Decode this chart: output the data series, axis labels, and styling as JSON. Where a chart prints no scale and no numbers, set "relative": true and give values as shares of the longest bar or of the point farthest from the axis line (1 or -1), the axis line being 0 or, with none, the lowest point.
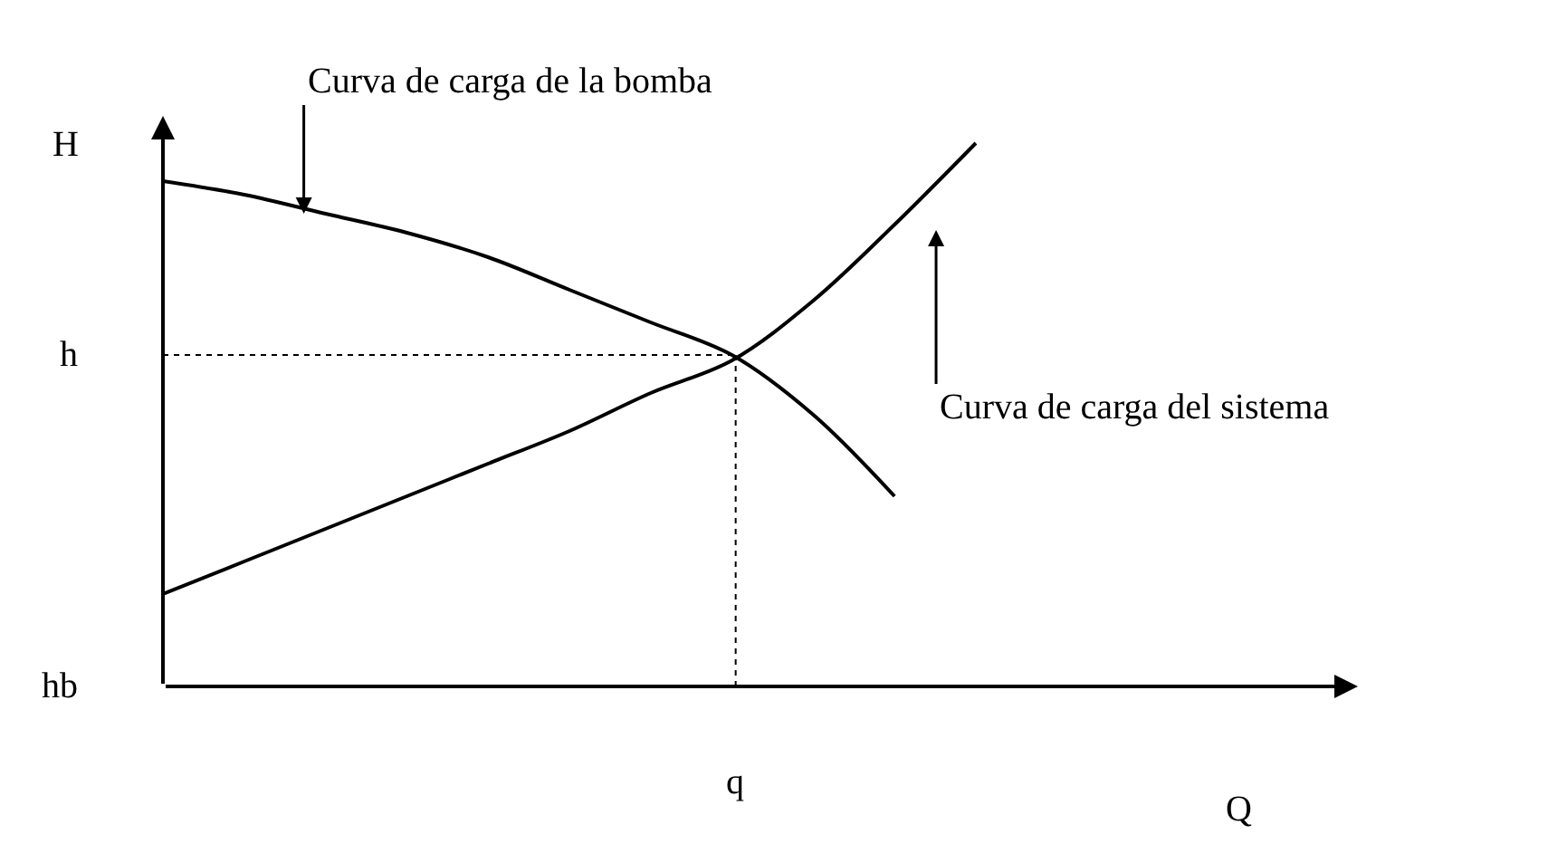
{
  "chart_data": {
    "type": "line",
    "relative": true,
    "ylabel": "H",
    "categories": [
      null,
      null,
      null,
      null,
      null,
      null,
      null,
      null,
      null,
      null,
      null
    ],
    "series": [
      {
        "values": [
          0.93,
          0.905,
          0.87,
          0.835,
          0.79,
          0.73,
          0.67,
          0.61,
          0.5,
          0.35,
          null
        ],
        "color": "#000000"
      },
      {
        "values": [
          0.17,
          0.23,
          0.29,
          0.35,
          0.41,
          0.47,
          0.54,
          0.6,
          0.71,
          0.85,
          1.0
        ],
        "color": "#000000"
      }
    ],
    "ref_lines": [
      {
        "axis": "y",
        "value": 0.61,
        "label": "h",
        "line_style": "dotted",
        "color": "#000000"
      },
      {
        "axis": "x",
        "label": "q",
        "line_style": "dotted",
        "color": "#000000"
      }
    ],
    "annotations": [
      "Curva de carga de la bomba",
      "Curva de carga del sistema",
      "hb",
      "Q"
    ],
    "marker": "none",
    "line_style": "solid"
  }
}
